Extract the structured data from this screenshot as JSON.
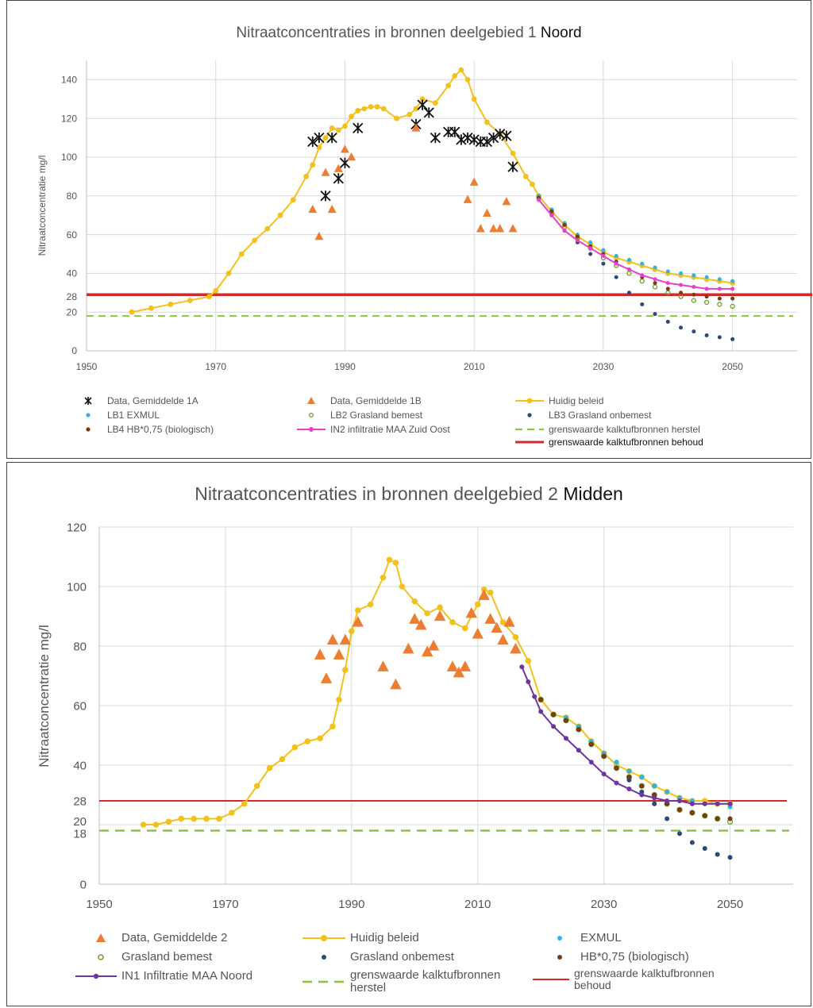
{
  "charts": [
    {
      "title_main": "Nitraatconcentraties in bronnen deelgebied 1",
      "title_suffix": "Noord"
    },
    {
      "title_main": "Nitraatconcentraties in bronnen deelgebied 2",
      "title_suffix": "Midden"
    }
  ],
  "colors": {
    "huidig": "#F2C11B",
    "data_orange": "#ED7D31",
    "data_black": "#111111",
    "exmul": "#2FB4E4",
    "grasland_bemest": "#6E9D2F",
    "grasland_onbemest": "#2B4A7A",
    "biologisch": "#7A3A12",
    "in2": "#E83FD0",
    "in1": "#6E35A0",
    "herstel": "#8CC63F",
    "behoud": "#D12A2A",
    "grid": "#d9d9d9"
  },
  "chart_data": [
    {
      "type": "line",
      "title": "Nitraatconcentraties in bronnen deelgebied 1 Noord",
      "xlabel": "",
      "ylabel": "Nitraatconcentratie mg/l",
      "xlim": [
        1950,
        2060
      ],
      "ylim": [
        0,
        150
      ],
      "xticks": [
        1950,
        1970,
        1990,
        2010,
        2030,
        2050
      ],
      "yticks": [
        0,
        20,
        28,
        40,
        60,
        80,
        100,
        120,
        140
      ],
      "grid": true,
      "legend_position": "bottom",
      "series": [
        {
          "name": "Huidig beleid",
          "kind": "line-marker",
          "color_key": "huidig",
          "x": [
            1957,
            1960,
            1963,
            1966,
            1969,
            1970,
            1972,
            1974,
            1976,
            1978,
            1980,
            1982,
            1984,
            1985,
            1986,
            1987,
            1988,
            1989,
            1990,
            1991,
            1992,
            1993,
            1994,
            1995,
            1996,
            1998,
            2000,
            2001,
            2002,
            2004,
            2006,
            2007,
            2008,
            2009,
            2010,
            2012,
            2014,
            2016,
            2018,
            2019,
            2020,
            2022,
            2024,
            2026,
            2028,
            2030,
            2032,
            2034,
            2036,
            2038,
            2040,
            2042,
            2044,
            2046,
            2048,
            2050
          ],
          "y": [
            20,
            22,
            24,
            26,
            28,
            31,
            40,
            50,
            57,
            63,
            70,
            78,
            90,
            96,
            105,
            110,
            115,
            114,
            116,
            121,
            124,
            125,
            126,
            126,
            125,
            120,
            122,
            125,
            130,
            128,
            137,
            142,
            145,
            140,
            130,
            118,
            112,
            102,
            90,
            86,
            80,
            72,
            65,
            59,
            55,
            51,
            48,
            46,
            44,
            42,
            40,
            39,
            38,
            37,
            36,
            35
          ]
        },
        {
          "name": "LB1 EXMUL",
          "kind": "marker",
          "color_key": "exmul",
          "x": [
            2020,
            2022,
            2024,
            2026,
            2028,
            2030,
            2032,
            2034,
            2036,
            2038,
            2040,
            2042,
            2044,
            2046,
            2048,
            2050
          ],
          "y": [
            80,
            73,
            66,
            60,
            56,
            52,
            49,
            47,
            45,
            43,
            41,
            40,
            39,
            38,
            37,
            36
          ]
        },
        {
          "name": "LB2 Grasland bemest",
          "kind": "marker",
          "color_key": "grasland_bemest",
          "x": [
            2020,
            2022,
            2024,
            2026,
            2028,
            2030,
            2032,
            2034,
            2036,
            2038,
            2040,
            2042,
            2044,
            2046,
            2048,
            2050
          ],
          "y": [
            79,
            71,
            64,
            58,
            53,
            48,
            44,
            40,
            36,
            33,
            30,
            28,
            26,
            25,
            24,
            23
          ]
        },
        {
          "name": "LB3 Grasland onbemest",
          "kind": "marker",
          "color_key": "grasland_onbemest",
          "x": [
            2020,
            2022,
            2024,
            2026,
            2028,
            2030,
            2032,
            2034,
            2036,
            2038,
            2040,
            2042,
            2044,
            2046,
            2048,
            2050
          ],
          "y": [
            78,
            70,
            62,
            56,
            50,
            45,
            38,
            30,
            24,
            19,
            15,
            12,
            10,
            8,
            7,
            6
          ]
        },
        {
          "name": "LB4 HB*0,75 (biologisch)",
          "kind": "marker",
          "color_key": "biologisch",
          "x": [
            2020,
            2022,
            2024,
            2026,
            2028,
            2030,
            2032,
            2034,
            2036,
            2038,
            2040,
            2042,
            2044,
            2046,
            2048,
            2050
          ],
          "y": [
            79,
            72,
            65,
            59,
            54,
            50,
            46,
            42,
            38,
            35,
            32,
            30,
            29,
            28,
            27,
            27
          ]
        },
        {
          "name": "IN2 infiltratie MAA Zuid Oost",
          "kind": "line-marker",
          "color_key": "in2",
          "x": [
            2020,
            2022,
            2024,
            2026,
            2028,
            2030,
            2032,
            2034,
            2036,
            2038,
            2040,
            2042,
            2044,
            2046,
            2048,
            2050
          ],
          "y": [
            78,
            70,
            62,
            57,
            53,
            49,
            45,
            42,
            39,
            37,
            35,
            34,
            33,
            32,
            32,
            32
          ]
        },
        {
          "name": "Data, Gemiddelde 1A",
          "kind": "cross",
          "color_key": "data_black",
          "x": [
            1985,
            1986,
            1987,
            1988,
            1989,
            1990,
            1992,
            2001,
            2002,
            2003,
            2004,
            2006,
            2007,
            2008,
            2009,
            2010,
            2011,
            2012,
            2013,
            2014,
            2015,
            2016
          ],
          "y": [
            108,
            110,
            80,
            110,
            89,
            97,
            115,
            117,
            127,
            123,
            110,
            113,
            113,
            109,
            110,
            109,
            108,
            108,
            110,
            112,
            111,
            95
          ]
        },
        {
          "name": "Data, Gemiddelde 1B",
          "kind": "triangle",
          "color_key": "data_orange",
          "x": [
            1985,
            1986,
            1987,
            1988,
            1989,
            1990,
            1991,
            2001,
            2009,
            2010,
            2011,
            2012,
            2013,
            2014,
            2015,
            2016
          ],
          "y": [
            73,
            59,
            92,
            73,
            94,
            104,
            100,
            115,
            78,
            87,
            63,
            71,
            63,
            63,
            77,
            63
          ]
        },
        {
          "name": "grenswaarde kalktufbronnen herstel",
          "kind": "dashed",
          "color_key": "herstel",
          "y": 18
        },
        {
          "name": "grenswaarde kalktufbronnen behoud",
          "kind": "solid",
          "color_key": "behoud",
          "y": 29
        }
      ]
    },
    {
      "type": "line",
      "title": "Nitraatconcentraties in bronnen deelgebied 2 Midden",
      "xlabel": "",
      "ylabel": "Nitraatconcentratie mg/l",
      "xlim": [
        1950,
        2060
      ],
      "ylim": [
        0,
        120
      ],
      "xticks": [
        1950,
        1970,
        1990,
        2010,
        2030,
        2050
      ],
      "yticks": [
        0,
        18,
        20,
        28,
        40,
        60,
        80,
        100,
        120
      ],
      "grid": true,
      "legend_position": "bottom",
      "series": [
        {
          "name": "Huidig beleid",
          "kind": "line-marker",
          "color_key": "huidig",
          "x": [
            1957,
            1959,
            1961,
            1963,
            1965,
            1967,
            1969,
            1971,
            1973,
            1975,
            1977,
            1979,
            1981,
            1983,
            1985,
            1987,
            1988,
            1989,
            1990,
            1991,
            1993,
            1995,
            1996,
            1997,
            1998,
            2000,
            2002,
            2004,
            2006,
            2008,
            2010,
            2011,
            2012,
            2014,
            2016,
            2018,
            2020,
            2022,
            2024,
            2026,
            2028,
            2030,
            2032,
            2034,
            2036,
            2038,
            2040,
            2042,
            2044,
            2046,
            2048,
            2050
          ],
          "y": [
            20,
            20,
            21,
            22,
            22,
            22,
            22,
            24,
            27,
            33,
            39,
            42,
            46,
            48,
            49,
            53,
            62,
            72,
            85,
            92,
            94,
            103,
            109,
            108,
            100,
            95,
            91,
            93,
            88,
            86,
            94,
            99,
            98,
            88,
            83,
            75,
            62,
            57,
            56,
            53,
            48,
            44,
            40,
            38,
            36,
            33,
            31,
            29,
            28,
            28,
            27,
            27
          ]
        },
        {
          "name": "EXMUL",
          "kind": "marker",
          "color_key": "exmul",
          "x": [
            2020,
            2022,
            2024,
            2026,
            2028,
            2030,
            2032,
            2034,
            2036,
            2038,
            2040,
            2042,
            2044,
            2046,
            2048,
            2050
          ],
          "y": [
            62,
            57,
            56,
            53,
            48,
            44,
            41,
            38,
            36,
            33,
            31,
            29,
            28,
            27,
            27,
            26
          ]
        },
        {
          "name": "Grasland bemest",
          "kind": "marker",
          "color_key": "grasland_bemest",
          "x": [
            2020,
            2022,
            2024,
            2026,
            2028,
            2030,
            2032,
            2034,
            2036,
            2038,
            2040,
            2042,
            2044,
            2046,
            2048,
            2050
          ],
          "y": [
            62,
            57,
            55,
            52,
            47,
            43,
            39,
            36,
            33,
            30,
            27,
            25,
            24,
            23,
            22,
            21
          ]
        },
        {
          "name": "Grasland onbemest",
          "kind": "marker",
          "color_key": "grasland_onbemest",
          "x": [
            2020,
            2022,
            2024,
            2026,
            2028,
            2030,
            2032,
            2034,
            2036,
            2038,
            2040,
            2042,
            2044,
            2046,
            2048,
            2050
          ],
          "y": [
            62,
            57,
            55,
            52,
            47,
            43,
            39,
            35,
            31,
            27,
            22,
            17,
            14,
            12,
            10,
            9
          ]
        },
        {
          "name": "HB*0,75 (biologisch)",
          "kind": "marker",
          "color_key": "biologisch",
          "x": [
            2020,
            2022,
            2024,
            2026,
            2028,
            2030,
            2032,
            2034,
            2036,
            2038,
            2040,
            2042,
            2044,
            2046,
            2048,
            2050
          ],
          "y": [
            62,
            57,
            55,
            52,
            47,
            43,
            39,
            36,
            33,
            30,
            27,
            25,
            24,
            23,
            22,
            22
          ]
        },
        {
          "name": "IN1 Infiltratie MAA Noord",
          "kind": "line-marker",
          "color_key": "in1",
          "x": [
            2017,
            2018,
            2019,
            2020,
            2022,
            2024,
            2026,
            2028,
            2030,
            2032,
            2034,
            2036,
            2038,
            2040,
            2042,
            2044,
            2046,
            2048,
            2050
          ],
          "y": [
            73,
            68,
            63,
            58,
            53,
            49,
            45,
            41,
            37,
            34,
            32,
            30,
            29,
            28,
            28,
            27,
            27,
            27,
            27
          ]
        },
        {
          "name": "Data, Gemiddelde 2",
          "kind": "triangle",
          "color_key": "data_orange",
          "x": [
            1985,
            1986,
            1987,
            1988,
            1989,
            1991,
            1995,
            1997,
            1999,
            2000,
            2001,
            2002,
            2003,
            2004,
            2006,
            2007,
            2008,
            2009,
            2010,
            2011,
            2012,
            2013,
            2014,
            2015,
            2016
          ],
          "y": [
            77,
            69,
            82,
            77,
            82,
            88,
            73,
            67,
            79,
            89,
            87,
            78,
            80,
            90,
            73,
            71,
            73,
            91,
            84,
            97,
            89,
            86,
            82,
            88,
            79
          ]
        },
        {
          "name": "grenswaarde kalktufbronnen herstel",
          "kind": "dashed",
          "color_key": "herstel",
          "y": 18
        },
        {
          "name": "grenswaarde kalktufbronnen behoud",
          "kind": "solid",
          "color_key": "behoud",
          "y": 28
        }
      ]
    }
  ],
  "legend1": {
    "data1a": "Data, Gemiddelde 1A",
    "data1b": "Data, Gemiddelde 1B",
    "huidig": "Huidig beleid",
    "lb1": "LB1 EXMUL",
    "lb2": "LB2 Grasland bemest",
    "lb3": "LB3 Grasland onbemest",
    "lb4": "LB4 HB*0,75 (biologisch)",
    "in2": "IN2 infiltratie MAA Zuid Oost",
    "herstel_prefix": "grenswaarde kalktufbronnen",
    "herstel_suffix": "herstel",
    "behoud": "grenswaarde kalktufbronnen behoud"
  },
  "legend2": {
    "data2": "Data, Gemiddelde 2",
    "huidig": "Huidig beleid",
    "exmul": "EXMUL",
    "bemest": "Grasland bemest",
    "onbemest": "Grasland onbemest",
    "bio": "HB*0,75 (biologisch)",
    "in1": "IN1 Infiltratie MAA Noord",
    "herstel": "grenswaarde kalktufbronnen herstel",
    "behoud": "grenswaarde kalktufbronnen behoud"
  }
}
